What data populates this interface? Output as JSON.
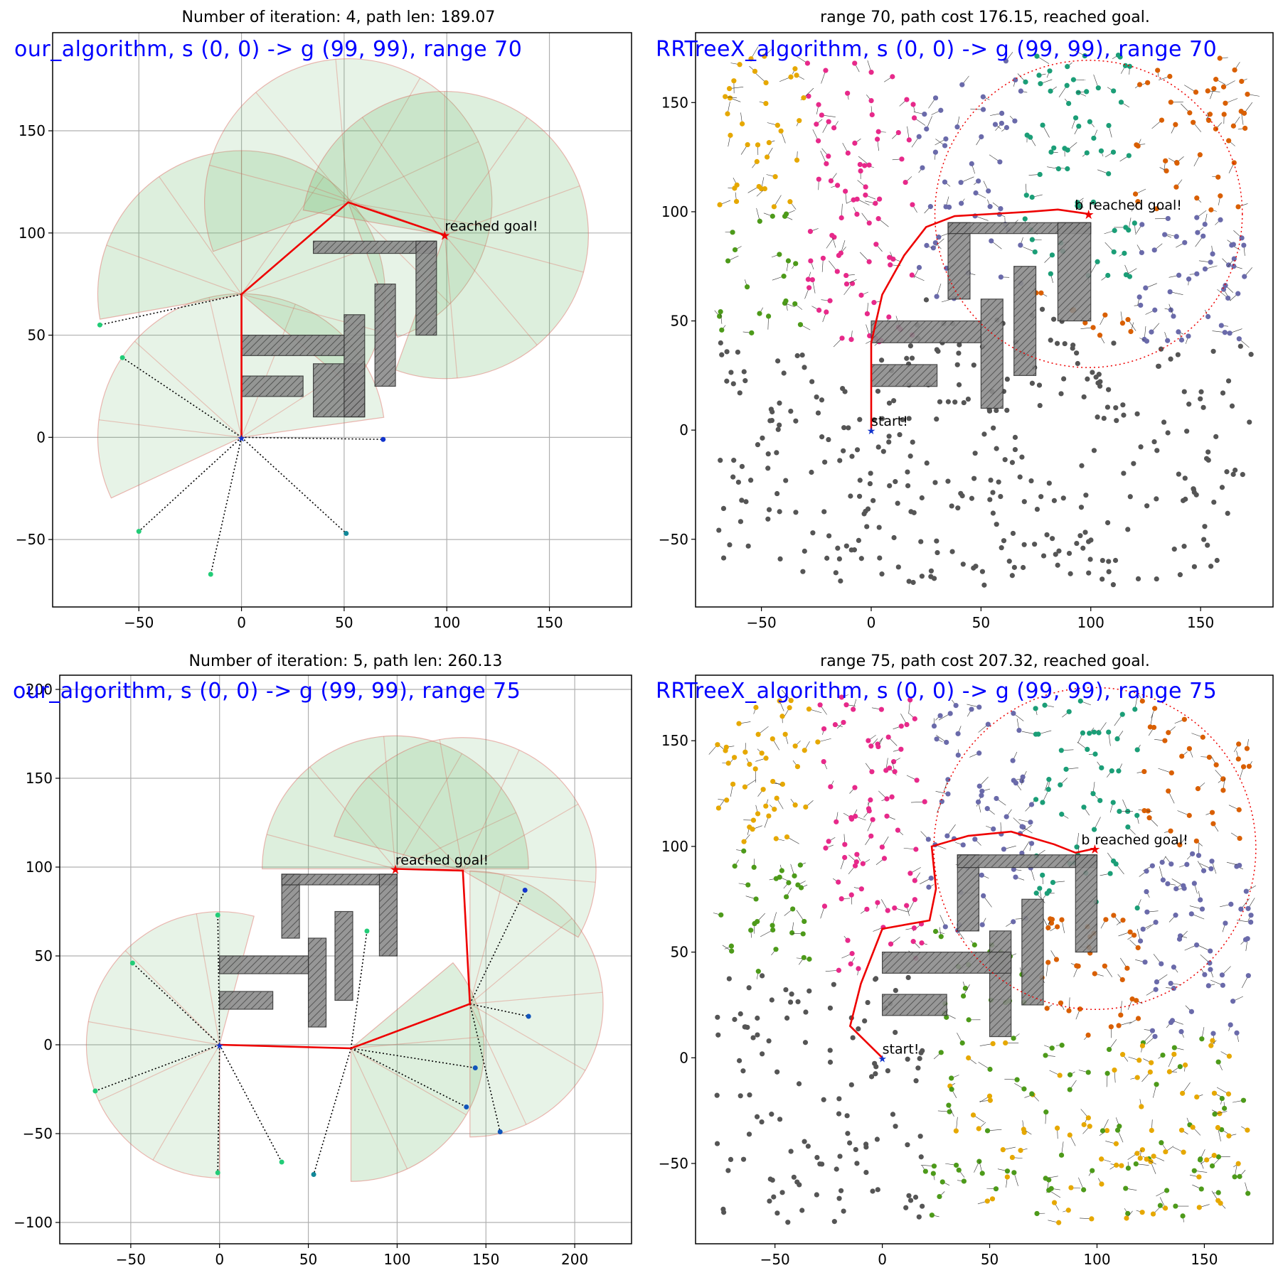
{
  "chart_data": [
    {
      "type": "scatter",
      "title": "Number of iteration: 4, path len: 189.07",
      "overlay": "our_algorithm, s (0, 0) -> g (99, 99), range 70",
      "xlim": [
        -92,
        190
      ],
      "ylim": [
        -83,
        198
      ],
      "xticks": [
        -50,
        0,
        50,
        100,
        150
      ],
      "yticks": [
        -50,
        0,
        50,
        100,
        150
      ],
      "grid": true,
      "annotations": [
        {
          "text": "reached goal!",
          "x": 99,
          "y": 99
        }
      ],
      "obstacles": [
        [
          35,
          60,
          10,
          36
        ],
        [
          35,
          95,
          90,
          96
        ],
        [
          85,
          95,
          50,
          96
        ],
        [
          50,
          60,
          10,
          60
        ],
        [
          65,
          75,
          25,
          75
        ],
        [
          0,
          50,
          40,
          50
        ],
        [
          0,
          30,
          20,
          30
        ]
      ],
      "sectors": [
        {
          "cx": 0,
          "cy": 0,
          "r": 70,
          "a0": 8,
          "a1": 205
        },
        {
          "cx": 0,
          "cy": 70,
          "r": 70,
          "a0": -40,
          "a1": 190
        },
        {
          "cx": 52,
          "cy": 115,
          "r": 70,
          "a0": -70,
          "a1": 200
        },
        {
          "cx": 99,
          "cy": 99,
          "r": 70,
          "a0": -110,
          "a1": 170
        }
      ],
      "path": {
        "x": [
          0,
          0,
          52,
          99
        ],
        "y": [
          0,
          70,
          115,
          99
        ]
      },
      "frontier": [
        {
          "from": [
            0,
            70
          ],
          "to": [
            -69,
            55
          ],
          "color": "#22cc77"
        },
        {
          "from": [
            0,
            0
          ],
          "to": [
            -58,
            39
          ],
          "color": "#22cc77"
        },
        {
          "from": [
            0,
            0
          ],
          "to": [
            -50,
            -46
          ],
          "color": "#22cc77"
        },
        {
          "from": [
            0,
            0
          ],
          "to": [
            -15,
            -67
          ],
          "color": "#22cc77"
        },
        {
          "from": [
            0,
            0
          ],
          "to": [
            51,
            -47
          ],
          "color": "#118899"
        },
        {
          "from": [
            0,
            0
          ],
          "to": [
            69,
            -1
          ],
          "color": "#1133cc"
        }
      ],
      "goal": [
        99,
        99
      ],
      "start": [
        0,
        0
      ]
    },
    {
      "type": "scatter",
      "title": "range 70, path cost 176.15, reached goal.",
      "overlay": "RRTreeX_algorithm, s (0, 0) -> g (99, 99), range 70",
      "xlim": [
        -80,
        183
      ],
      "ylim": [
        -81,
        182
      ],
      "xticks": [
        -50,
        0,
        50,
        100,
        150
      ],
      "yticks": [
        -50,
        0,
        50,
        100,
        150
      ],
      "grid": false,
      "annotations": [
        {
          "text": "start!",
          "x": 0,
          "y": 0
        },
        {
          "text": "reached goal!",
          "x": 99,
          "y": 99
        },
        {
          "text": "b",
          "x": 94,
          "y": 99
        }
      ],
      "obstacles": [
        [
          35,
          45,
          60,
          95
        ],
        [
          35,
          100,
          90,
          95
        ],
        [
          85,
          100,
          50,
          95
        ],
        [
          50,
          60,
          10,
          60
        ],
        [
          65,
          75,
          25,
          75
        ],
        [
          0,
          50,
          40,
          50
        ],
        [
          0,
          30,
          20,
          30
        ]
      ],
      "goal_circle": {
        "cx": 99,
        "cy": 99,
        "r": 70
      },
      "path": {
        "x": [
          0,
          0,
          5,
          15,
          25,
          38,
          55,
          72,
          85,
          99
        ],
        "y": [
          0,
          40,
          62,
          80,
          93,
          98,
          99,
          100,
          101,
          99
        ]
      },
      "goal": [
        99,
        99
      ],
      "start": [
        0,
        0
      ],
      "tree_colors": [
        "#e6a800",
        "#4d9a1a",
        "#e7298a",
        "#6a6aaa",
        "#d95f02",
        "#1b9e77"
      ],
      "sample_color": "#555555"
    },
    {
      "type": "scatter",
      "title": "Number of iteration: 5, path len: 260.13",
      "overlay": "our_algorithm, s (0, 0) -> g (99, 99), range 75",
      "xlim": [
        -90,
        232
      ],
      "ylim": [
        -112,
        208
      ],
      "xticks": [
        -50,
        0,
        50,
        100,
        150,
        200
      ],
      "yticks": [
        -100,
        -50,
        0,
        50,
        100,
        150,
        200
      ],
      "grid": true,
      "annotations": [
        {
          "text": "reached goal!",
          "x": 99,
          "y": 99
        }
      ],
      "obstacles": [
        [
          35,
          45,
          60,
          96
        ],
        [
          35,
          100,
          90,
          96
        ],
        [
          90,
          100,
          50,
          96
        ],
        [
          50,
          60,
          10,
          60
        ],
        [
          65,
          75,
          25,
          75
        ],
        [
          0,
          50,
          40,
          50
        ],
        [
          0,
          30,
          20,
          30
        ]
      ],
      "sectors": [
        {
          "cx": 0,
          "cy": 0,
          "r": 75,
          "a0": 75,
          "a1": 270
        },
        {
          "cx": 74,
          "cy": -2,
          "r": 75,
          "a0": -90,
          "a1": 40
        },
        {
          "cx": 141,
          "cy": 23,
          "r": 75,
          "a0": -90,
          "a1": 90
        },
        {
          "cx": 99,
          "cy": 99,
          "r": 75,
          "a0": 0,
          "a1": 180
        },
        {
          "cx": 137,
          "cy": 98,
          "r": 75,
          "a0": -30,
          "a1": 165
        }
      ],
      "path": {
        "x": [
          0,
          74,
          141,
          137,
          99
        ],
        "y": [
          0,
          -2,
          23,
          98,
          99
        ]
      },
      "frontier": [
        {
          "from": [
            0,
            0
          ],
          "to": [
            -49,
            46
          ],
          "color": "#22cc77"
        },
        {
          "from": [
            0,
            0
          ],
          "to": [
            -70,
            -26
          ],
          "color": "#22cc77"
        },
        {
          "from": [
            0,
            0
          ],
          "to": [
            -1,
            73
          ],
          "color": "#22cc77"
        },
        {
          "from": [
            0,
            0
          ],
          "to": [
            -1,
            -72
          ],
          "color": "#22cc77"
        },
        {
          "from": [
            0,
            0
          ],
          "to": [
            35,
            -66
          ],
          "color": "#22cc77"
        },
        {
          "from": [
            74,
            -2
          ],
          "to": [
            83,
            64
          ],
          "color": "#22cc77"
        },
        {
          "from": [
            74,
            -2
          ],
          "to": [
            53,
            -73
          ],
          "color": "#118899"
        },
        {
          "from": [
            74,
            -2
          ],
          "to": [
            144,
            -13
          ],
          "color": "#1155bb"
        },
        {
          "from": [
            74,
            -2
          ],
          "to": [
            139,
            -35
          ],
          "color": "#1155bb"
        },
        {
          "from": [
            141,
            23
          ],
          "to": [
            174,
            16
          ],
          "color": "#1155bb"
        },
        {
          "from": [
            141,
            23
          ],
          "to": [
            158,
            -49
          ],
          "color": "#1155bb"
        },
        {
          "from": [
            141,
            23
          ],
          "to": [
            172,
            87
          ],
          "color": "#1133cc"
        }
      ],
      "goal": [
        99,
        99
      ],
      "start": [
        0,
        0
      ]
    },
    {
      "type": "scatter",
      "title": "range 75, path cost 207.32, reached goal.",
      "overlay": "RRTreeX_algorithm, s (0, 0) -> g (99, 99), range 75",
      "xlim": [
        -87,
        182
      ],
      "ylim": [
        -88,
        181
      ],
      "xticks": [
        -50,
        0,
        50,
        100,
        150
      ],
      "yticks": [
        -50,
        0,
        50,
        100,
        150
      ],
      "grid": false,
      "annotations": [
        {
          "text": "start!",
          "x": 0,
          "y": 0
        },
        {
          "text": "reached goal!",
          "x": 99,
          "y": 99
        },
        {
          "text": "b",
          "x": 94,
          "y": 99
        }
      ],
      "obstacles": [
        [
          35,
          45,
          60,
          96
        ],
        [
          35,
          100,
          90,
          96
        ],
        [
          90,
          100,
          50,
          96
        ],
        [
          50,
          60,
          10,
          60
        ],
        [
          65,
          75,
          25,
          75
        ],
        [
          0,
          30,
          20,
          30
        ],
        [
          0,
          60,
          40,
          50
        ]
      ],
      "goal_circle": {
        "cx": 99,
        "cy": 99,
        "r": 75
      },
      "path": {
        "x": [
          0,
          -15,
          -10,
          0,
          22,
          25,
          23,
          40,
          60,
          80,
          90,
          99
        ],
        "y": [
          0,
          15,
          35,
          61,
          65,
          80,
          100,
          105,
          107,
          101,
          97,
          99
        ]
      },
      "goal": [
        99,
        99
      ],
      "start": [
        0,
        0
      ],
      "tree_colors": [
        "#e6a800",
        "#4d9a1a",
        "#e7298a",
        "#6a6aaa",
        "#d95f02",
        "#1b9e77"
      ],
      "sample_color": "#555555"
    }
  ]
}
